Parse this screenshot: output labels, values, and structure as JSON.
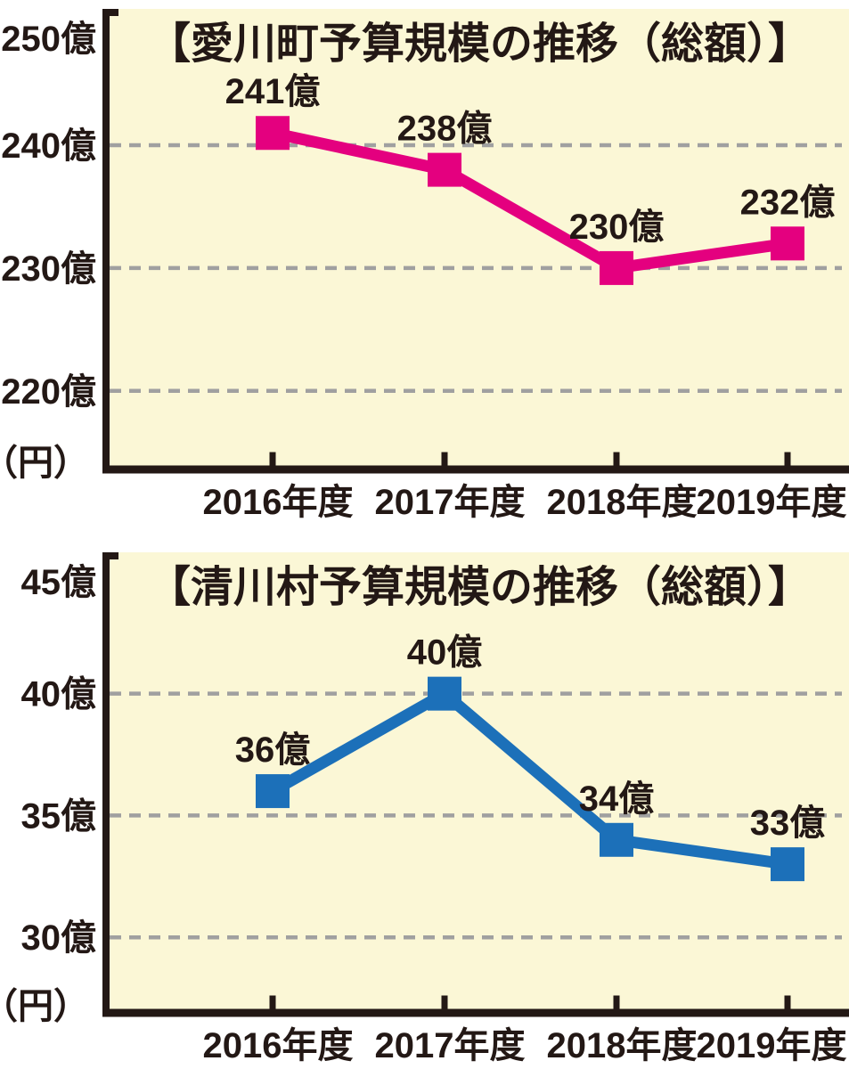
{
  "style": {
    "page_bg": "#ffffff",
    "plot_bg": "#FBF7D6",
    "grid_color": "#A0A0A0",
    "axis_color": "#231815",
    "text_color": "#231815"
  },
  "chart_data": [
    {
      "type": "line",
      "title": "【愛川町予算規模の推移（総額）】",
      "unit_label": "（円）",
      "categories": [
        "2016年度",
        "2017年度",
        "2018年度",
        "2019年度"
      ],
      "series": [
        {
          "name": "愛川町予算総額",
          "values": [
            241,
            238,
            230,
            232
          ],
          "point_labels": [
            "241億",
            "238億",
            "230億",
            "232億"
          ],
          "color": "#E4007F",
          "marker": "square"
        }
      ],
      "yticks": [
        {
          "value": 250,
          "label": "250億",
          "gridline": false
        },
        {
          "value": 240,
          "label": "240億",
          "gridline": true
        },
        {
          "value": 230,
          "label": "230億",
          "gridline": true
        },
        {
          "value": 220,
          "label": "220億",
          "gridline": true
        }
      ],
      "ylim": [
        213.6,
        251.1
      ],
      "grid": "horizontal-dashed",
      "legend": "none",
      "xlabel": "",
      "ylabel": "（円）"
    },
    {
      "type": "line",
      "title": "【清川村予算規模の推移（総額）】",
      "unit_label": "（円）",
      "categories": [
        "2016年度",
        "2017年度",
        "2018年度",
        "2019年度"
      ],
      "series": [
        {
          "name": "清川村予算総額",
          "values": [
            36,
            40,
            34,
            33
          ],
          "point_labels": [
            "36億",
            "40億",
            "34億",
            "33億"
          ],
          "color": "#1C70B9",
          "marker": "square"
        }
      ],
      "yticks": [
        {
          "value": 45,
          "label": "45億",
          "gridline": false
        },
        {
          "value": 40,
          "label": "40億",
          "gridline": true
        },
        {
          "value": 35,
          "label": "35億",
          "gridline": true
        },
        {
          "value": 30,
          "label": "30億",
          "gridline": true
        }
      ],
      "ylim": [
        26.9,
        45.8
      ],
      "grid": "horizontal-dashed",
      "legend": "none",
      "xlabel": "",
      "ylabel": "（円）"
    }
  ]
}
